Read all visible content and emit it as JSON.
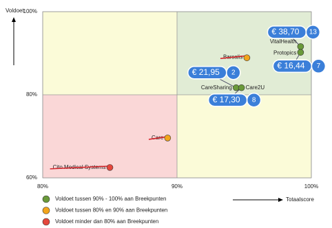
{
  "chart_data": {
    "type": "scatter",
    "x_label": "Totaalscore",
    "y_label": "Voldoet",
    "xlim": [
      80,
      100
    ],
    "ylim": [
      60,
      100
    ],
    "xticks": [
      {
        "value": 80,
        "label": "80%"
      },
      {
        "value": 90,
        "label": "90%"
      },
      {
        "value": 100,
        "label": "100%"
      }
    ],
    "yticks": [
      {
        "value": 60,
        "label": "60%"
      },
      {
        "value": 80,
        "label": "80%"
      },
      {
        "value": 100,
        "label": "100%"
      }
    ],
    "quadrant_colors": [
      "#fbfbd8",
      "#e1ecd5",
      "#fad7d7",
      "#fbfbd8"
    ],
    "series": [
      {
        "name": "Voldoet tussen 90% - 100% aan Breekpunten",
        "color": "#6a9a3a",
        "strikethrough": false,
        "labels": [
          "VitalHealth",
          "Protopics",
          "CareSharing",
          "Care2U"
        ],
        "x": [
          99.2,
          99.2,
          94.4,
          94.8
        ],
        "values": [
          91.6,
          90.2,
          81.7,
          81.7
        ],
        "price_labels": [
          "€ 38,70",
          "€ 16,44",
          "€ 21,95",
          "€ 17,30"
        ],
        "badges": [
          13,
          7,
          2,
          8
        ]
      },
      {
        "name": "Voldoet tussen 80% en 90% aan Breekpunten",
        "color": "#f2a51c",
        "strikethrough": true,
        "labels": [
          "Barsalis",
          "Care"
        ],
        "x": [
          95.2,
          89.3
        ],
        "values": [
          88.9,
          69.6
        ]
      },
      {
        "name": "Voldoet minder dan 80% aan Breekpunten",
        "color": "#e5473c",
        "strikethrough": true,
        "labels": [
          "Cito Medical Systems"
        ],
        "x": [
          85.0
        ],
        "values": [
          62.5
        ]
      }
    ]
  }
}
